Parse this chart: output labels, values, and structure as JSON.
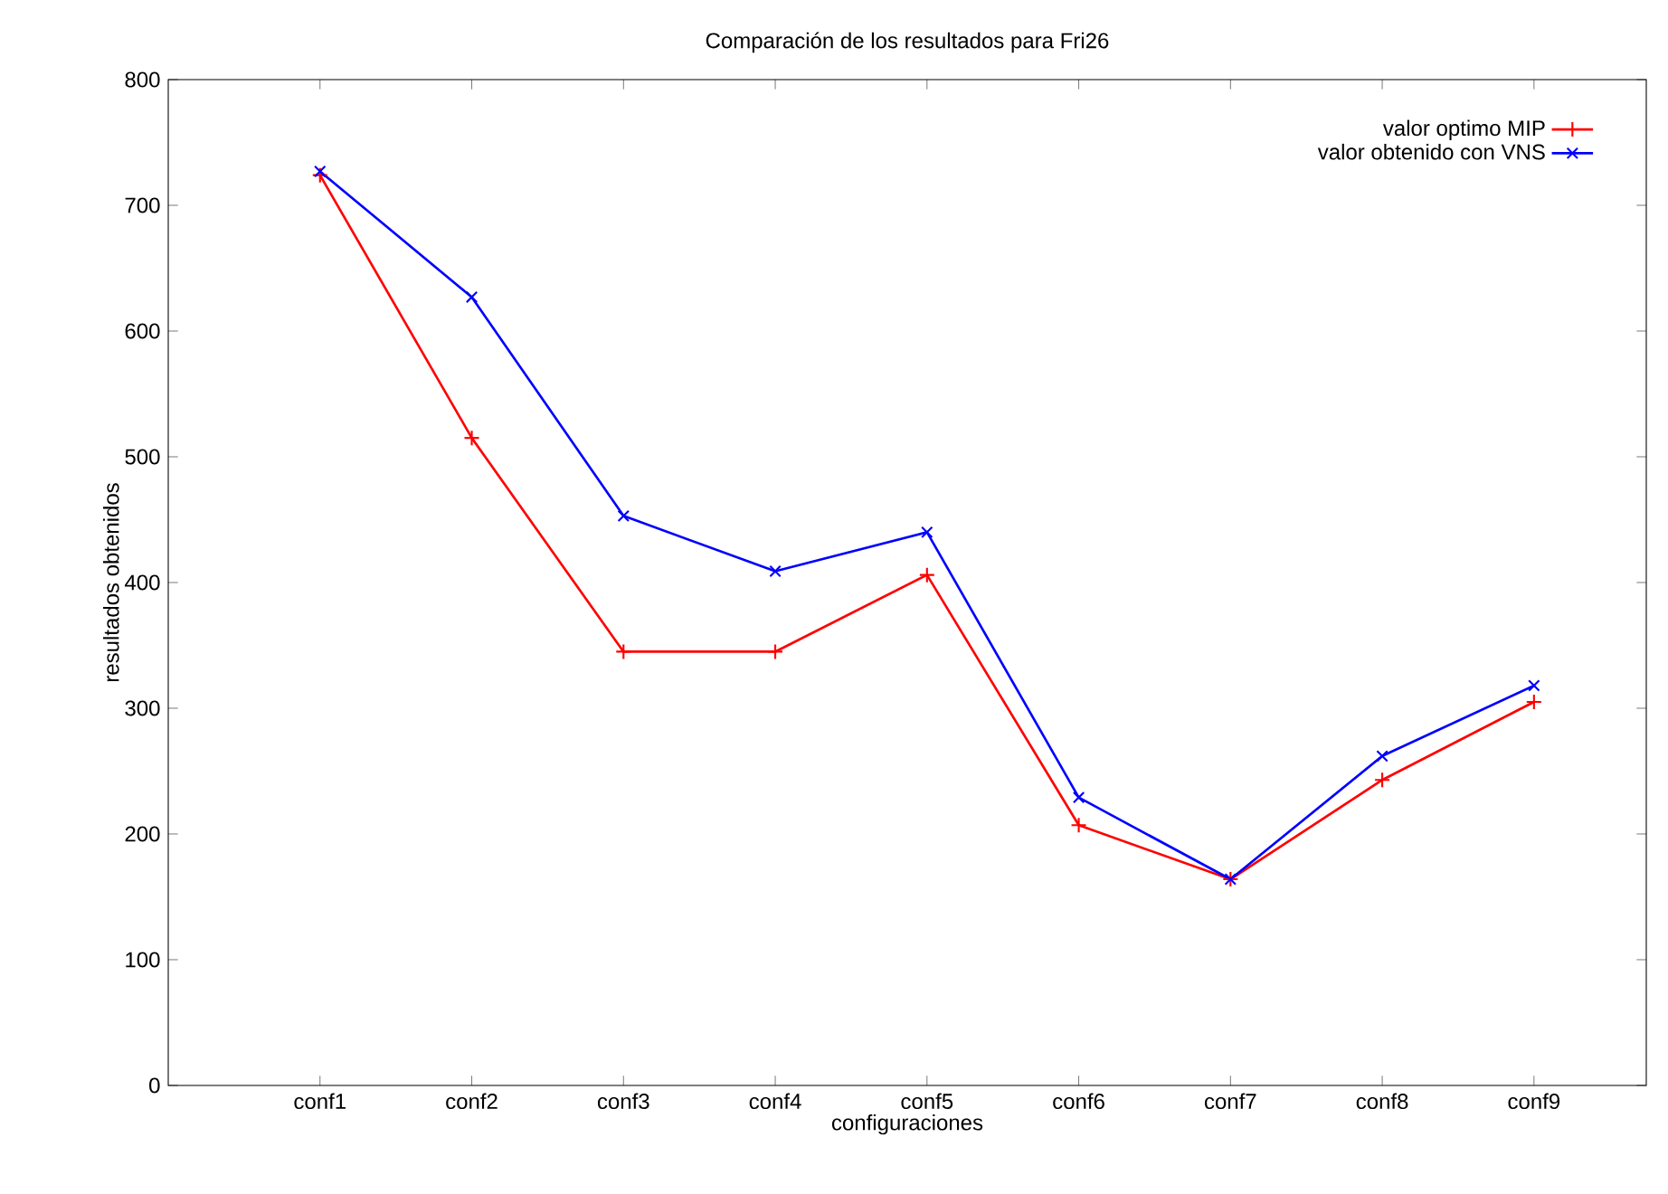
{
  "chart_data": {
    "type": "line",
    "title": "Comparación de los resultados para Fri26",
    "xlabel": "configuraciones",
    "ylabel": "resultados obtenidos",
    "categories": [
      "conf1",
      "conf2",
      "conf3",
      "conf4",
      "conf5",
      "conf6",
      "conf7",
      "conf8",
      "conf9"
    ],
    "series": [
      {
        "name": "valor optimo MIP",
        "color": "#ff0000",
        "marker": "plus",
        "values": [
          724,
          515,
          345,
          345,
          406,
          207,
          164,
          243,
          305
        ]
      },
      {
        "name": "valor obtenido con VNS",
        "color": "#0000ff",
        "marker": "cross",
        "values": [
          727,
          627,
          453,
          409,
          440,
          229,
          164,
          262,
          318
        ]
      }
    ],
    "ylim": [
      0,
      800
    ],
    "yticks": [
      0,
      100,
      200,
      300,
      400,
      500,
      600,
      700,
      800
    ],
    "grid": false,
    "legend": "top right",
    "line_style": "solid"
  }
}
